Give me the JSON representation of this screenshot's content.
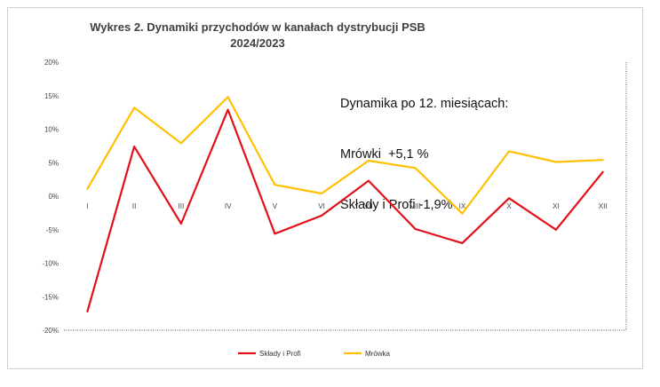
{
  "chart_data": {
    "type": "line",
    "title_line1": "Wykres 2. Dynamiki przychodów w kanałach dystrybucji PSB",
    "title_line2": "2024/2023",
    "annotation": [
      "Dynamika po 12. miesiącach:",
      "Mrówki  +5,1 %",
      "Składy i Profi -1,9%"
    ],
    "categories": [
      "I",
      "II",
      "III",
      "IV",
      "V",
      "VI",
      "VII",
      "VIII",
      "IX",
      "X",
      "XI",
      "XII"
    ],
    "ylim": [
      -20,
      20
    ],
    "yticks": [
      -20,
      -15,
      -10,
      -5,
      0,
      5,
      10,
      15,
      20
    ],
    "ytick_labels": [
      "-20%",
      "-15%",
      "-10%",
      "-5%",
      "0%",
      "5%",
      "10%",
      "15%",
      "20%"
    ],
    "series": [
      {
        "name": "Składy i Profi",
        "color": "#e3101a",
        "values": [
          -17.2,
          7.4,
          -4.1,
          12.9,
          -5.6,
          -2.9,
          2.3,
          -4.9,
          -7.0,
          -0.3,
          -5.0,
          3.6
        ]
      },
      {
        "name": "Mrówka",
        "color": "#ffc000",
        "values": [
          1.1,
          13.2,
          7.9,
          14.8,
          1.7,
          0.4,
          5.3,
          4.2,
          -2.6,
          6.7,
          5.1,
          5.4
        ]
      }
    ],
    "grid": false,
    "legend_position": "bottom"
  }
}
